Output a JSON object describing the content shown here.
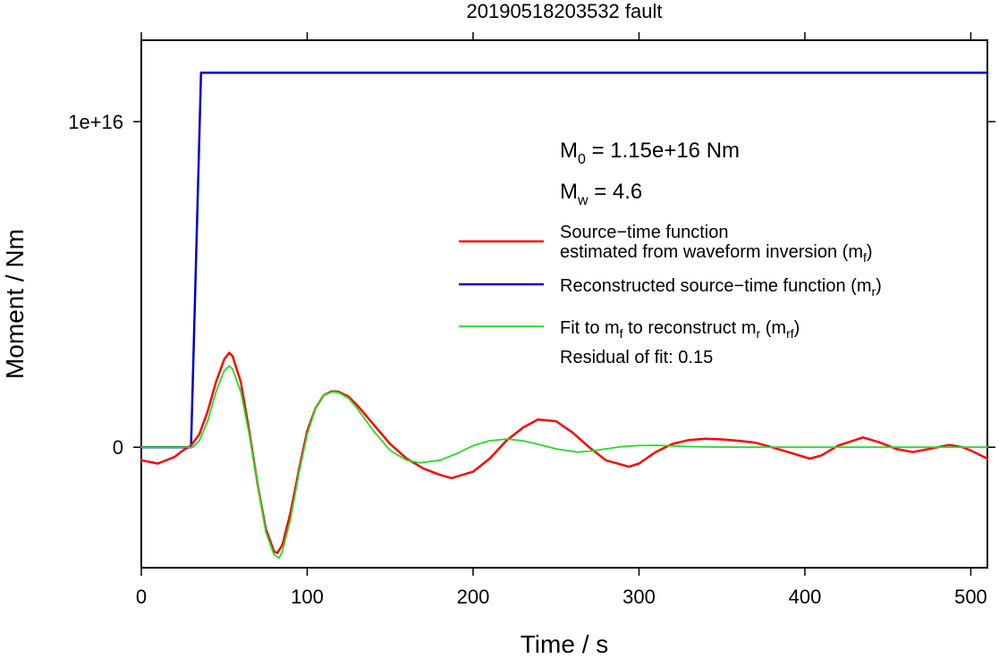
{
  "chart_data": {
    "type": "line",
    "title": "20190518203532 fault",
    "xlabel": "Time / s",
    "ylabel": "Moment / Nm",
    "xlim": [
      0,
      510
    ],
    "ylim": [
      -3700000000000000.0,
      1.25e+16
    ],
    "x_ticks": [
      0,
      100,
      200,
      300,
      400,
      500
    ],
    "x_tick_labels": [
      "0",
      "100",
      "200",
      "300",
      "400",
      "500"
    ],
    "y_ticks": [
      0,
      1e+16
    ],
    "y_tick_labels": [
      "0",
      "1e+16"
    ],
    "grid": false,
    "legend_position": "right",
    "annotations": {
      "m0": {
        "symbol": "M",
        "sub": "0",
        "text": " = 1.15e+16 Nm"
      },
      "mw": {
        "symbol": "M",
        "sub": "w",
        "text": " = 4.6"
      },
      "residual": "Residual of fit: 0.15"
    },
    "series": [
      {
        "name": "Source−time function estimated from waveform inversion (mf)",
        "color": "#ff0000",
        "x": [
          0,
          10,
          20,
          25,
          30,
          35,
          40,
          45,
          50,
          53,
          55,
          60,
          65,
          70,
          75,
          80,
          82,
          85,
          90,
          95,
          100,
          105,
          110,
          115,
          119,
          125,
          130,
          140,
          150,
          160,
          170,
          180,
          187,
          200,
          210,
          220,
          230,
          239,
          250,
          260,
          270,
          280,
          294,
          300,
          310,
          320,
          330,
          340,
          350,
          360,
          370,
          380,
          390,
          403,
          410,
          420,
          435,
          445,
          455,
          465,
          475,
          487,
          495,
          500,
          510
        ],
        "y": [
          -400000000000000.0,
          -500000000000000.0,
          -300000000000000.0,
          -100000000000000.0,
          50000000000000.0,
          400000000000000.0,
          1100000000000000.0,
          2000000000000000.0,
          2700000000000000.0,
          2900000000000000.0,
          2800000000000000.0,
          2000000000000000.0,
          500000000000000.0,
          -1100000000000000.0,
          -2500000000000000.0,
          -3200000000000000.0,
          -3250000000000000.0,
          -3000000000000000.0,
          -2000000000000000.0,
          -700000000000000.0,
          500000000000000.0,
          1200000000000000.0,
          1600000000000000.0,
          1720000000000000.0,
          1700000000000000.0,
          1550000000000000.0,
          1300000000000000.0,
          700000000000000.0,
          100000000000000.0,
          -350000000000000.0,
          -650000000000000.0,
          -850000000000000.0,
          -950000000000000.0,
          -750000000000000.0,
          -350000000000000.0,
          200000000000000.0,
          600000000000000.0,
          850000000000000.0,
          800000000000000.0,
          450000000000000.0,
          0.0,
          -400000000000000.0,
          -600000000000000.0,
          -500000000000000.0,
          -150000000000000.0,
          100000000000000.0,
          220000000000000.0,
          260000000000000.0,
          240000000000000.0,
          200000000000000.0,
          140000000000000.0,
          0.0,
          -150000000000000.0,
          -350000000000000.0,
          -250000000000000.0,
          50000000000000.0,
          300000000000000.0,
          150000000000000.0,
          -50000000000000.0,
          -150000000000000.0,
          -50000000000000.0,
          70000000000000.0,
          0.0,
          -100000000000000.0,
          -350000000000000.0
        ]
      },
      {
        "name": "Reconstructed source−time function (mr)",
        "color": "#0000cc",
        "x": [
          0,
          30,
          36,
          510
        ],
        "y": [
          0,
          0,
          1.15e+16,
          1.15e+16
        ]
      },
      {
        "name": "Fit to mf to reconstruct mr (mrf)",
        "color": "#22dd22",
        "x": [
          0,
          28,
          31,
          35,
          40,
          45,
          50,
          53,
          55,
          60,
          65,
          70,
          75,
          80,
          83,
          85,
          90,
          95,
          100,
          105,
          110,
          115,
          119,
          125,
          130,
          140,
          150,
          160,
          168,
          180,
          190,
          200,
          210,
          220,
          230,
          240,
          250,
          263,
          270,
          280,
          290,
          300,
          310,
          320,
          330,
          340,
          360,
          400,
          450,
          510
        ],
        "y": [
          0,
          0,
          0.0,
          200000000000000.0,
          800000000000000.0,
          1700000000000000.0,
          2350000000000000.0,
          2500000000000000.0,
          2400000000000000.0,
          1700000000000000.0,
          400000000000000.0,
          -1100000000000000.0,
          -2600000000000000.0,
          -3300000000000000.0,
          -3400000000000000.0,
          -3200000000000000.0,
          -2200000000000000.0,
          -800000000000000.0,
          400000000000000.0,
          1200000000000000.0,
          1600000000000000.0,
          1700000000000000.0,
          1680000000000000.0,
          1500000000000000.0,
          1200000000000000.0,
          500000000000000.0,
          -100000000000000.0,
          -400000000000000.0,
          -480000000000000.0,
          -400000000000000.0,
          -200000000000000.0,
          50000000000000.0,
          200000000000000.0,
          250000000000000.0,
          200000000000000.0,
          80000000000000.0,
          -50000000000000.0,
          -150000000000000.0,
          -120000000000000.0,
          -50000000000000.0,
          20000000000000.0,
          50000000000000.0,
          60000000000000.0,
          40000000000000.0,
          20000000000000.0,
          10000000000000.0,
          0,
          0,
          0,
          0
        ]
      }
    ]
  },
  "legend": [
    {
      "line1": "Source−time function",
      "line2_pre": "estimated from waveform inversion (m",
      "line2_sub": "f",
      "line2_post": ")"
    },
    {
      "pre": "Reconstructed source−time function (m",
      "sub": "r",
      "post": ")"
    },
    {
      "pre": "Fit to m",
      "sub1": "f",
      "mid": " to reconstruct m",
      "sub2": "r",
      "mid2": " (m",
      "sub3": "rf",
      "post": ")"
    }
  ]
}
